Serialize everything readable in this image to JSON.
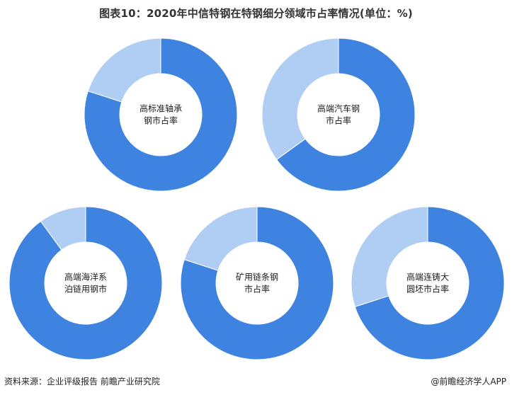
{
  "title": "图表10：2020年中信特钢在特钢细分领域市占率情况(单位：%)",
  "chart_data": [
    {
      "type": "pie",
      "label_lines": [
        "高标准轴承",
        "钢市占率"
      ],
      "values": [
        80,
        20
      ],
      "colors": [
        "#3f83e0",
        "#b0cdf3"
      ]
    },
    {
      "type": "pie",
      "label_lines": [
        "高端汽车钢",
        "市占率"
      ],
      "values": [
        65,
        35
      ],
      "colors": [
        "#3f83e0",
        "#b0cdf3"
      ]
    },
    {
      "type": "pie",
      "label_lines": [
        "高端海洋系",
        "泊链用钢市"
      ],
      "values": [
        90,
        10
      ],
      "colors": [
        "#3f83e0",
        "#b0cdf3"
      ]
    },
    {
      "type": "pie",
      "label_lines": [
        "矿用链条钢",
        "市占率"
      ],
      "values": [
        80,
        20
      ],
      "colors": [
        "#3f83e0",
        "#b0cdf3"
      ]
    },
    {
      "type": "pie",
      "label_lines": [
        "高端连铸大",
        "圆坯市占率"
      ],
      "values": [
        70,
        30
      ],
      "colors": [
        "#3f83e0",
        "#b0cdf3"
      ]
    }
  ],
  "footer": {
    "source": "资料来源：企业评级报告 前瞻产业研究院",
    "brand": "@前瞻经济学人APP"
  }
}
